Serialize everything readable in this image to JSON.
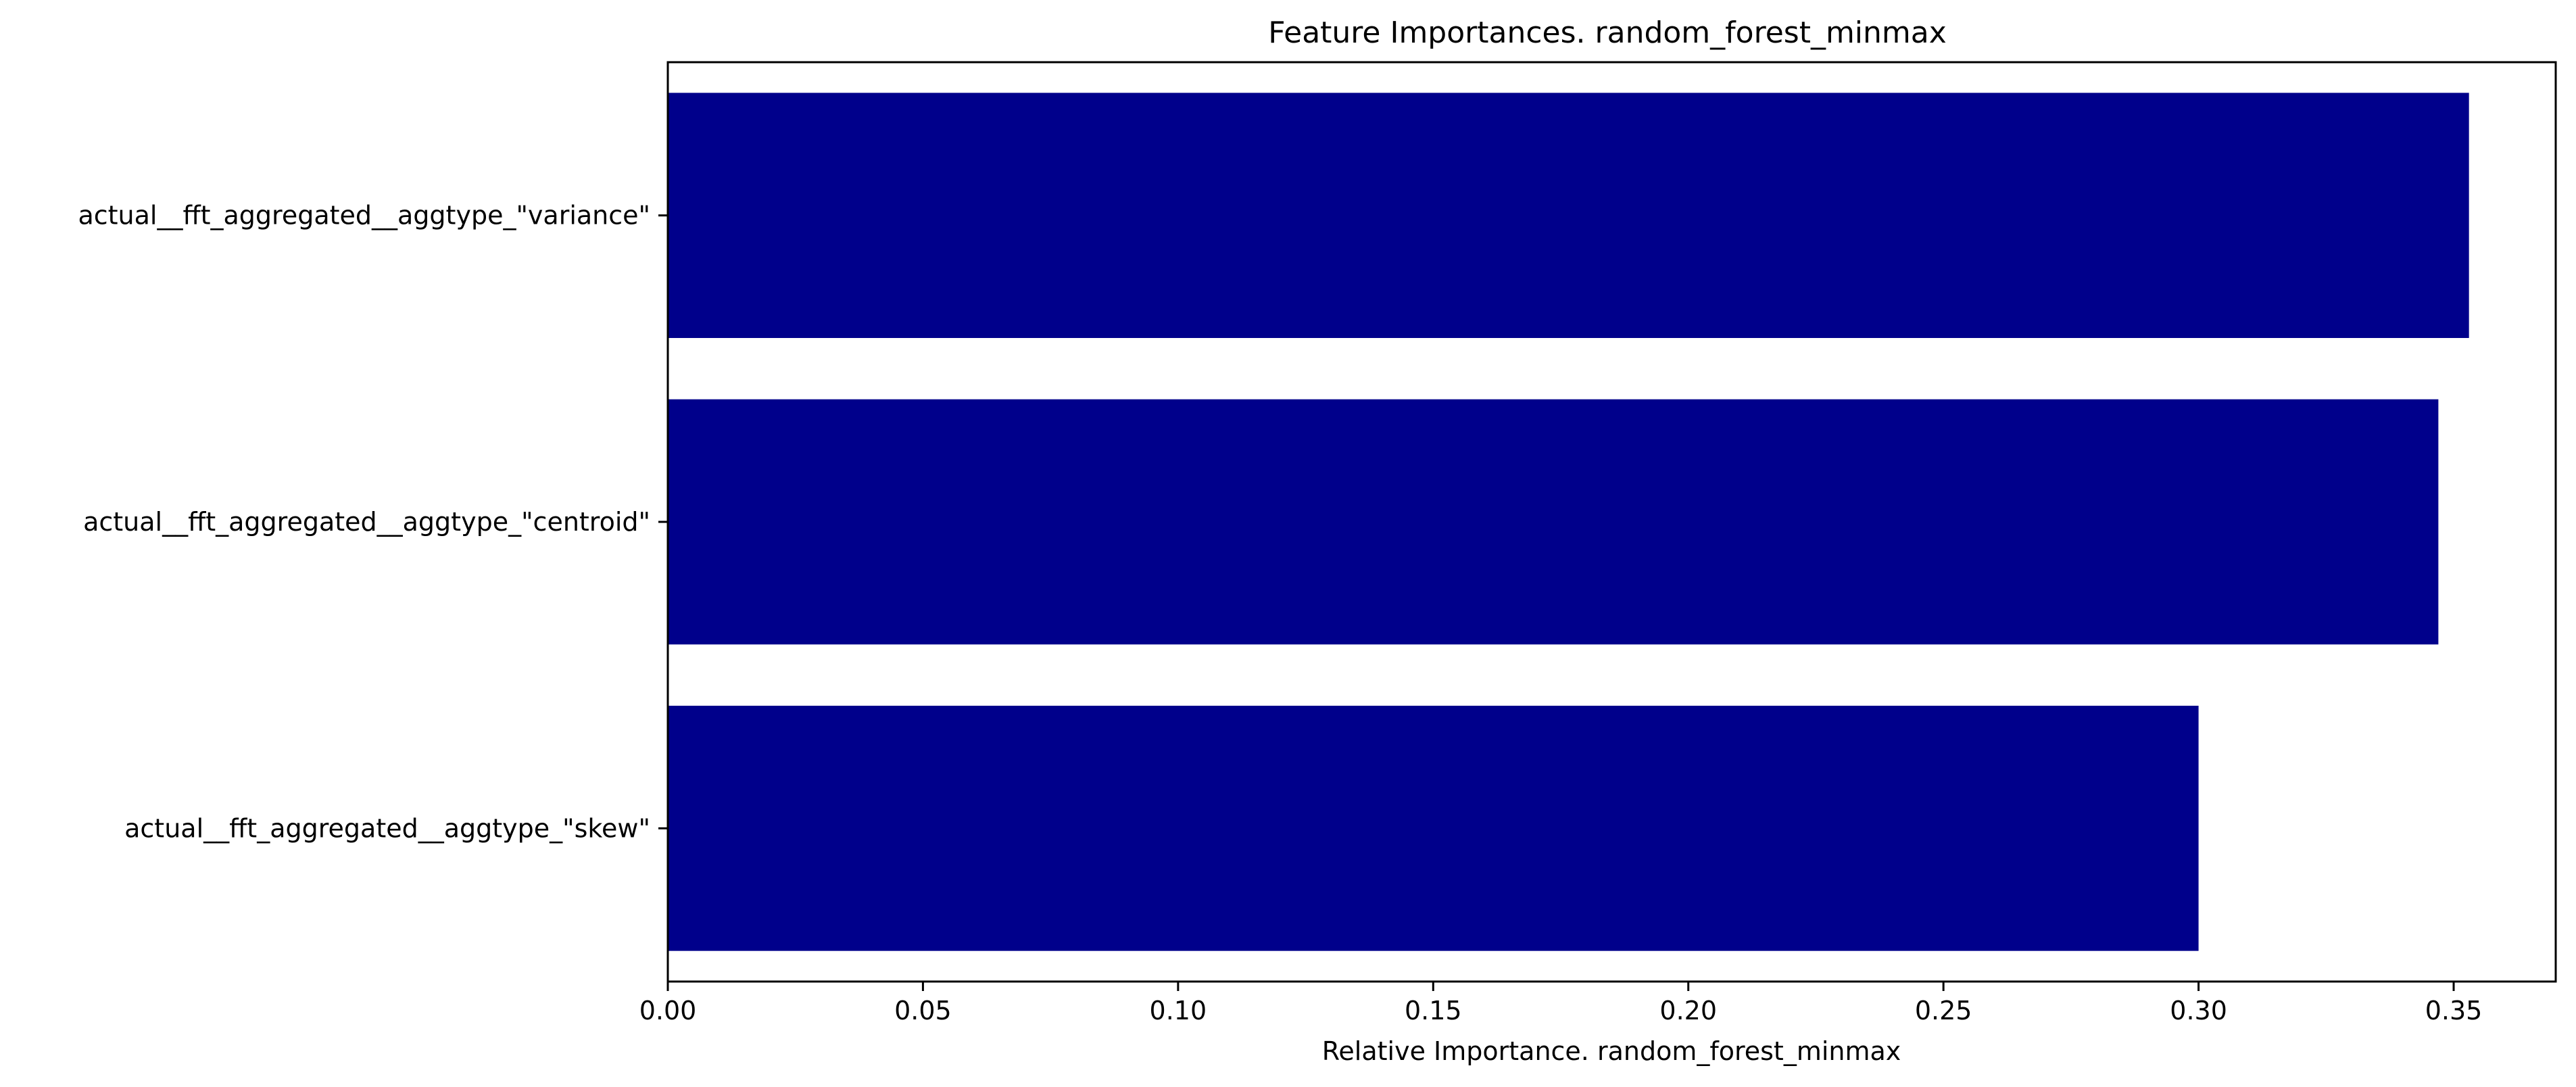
{
  "chart_data": {
    "type": "bar",
    "orientation": "horizontal",
    "title": "Feature Importances. random_forest_minmax",
    "xlabel": "Relative Importance. random_forest_minmax",
    "ylabel": "",
    "categories": [
      "actual__fft_aggregated__aggtype_\"variance\"",
      "actual__fft_aggregated__aggtype_\"centroid\"",
      "actual__fft_aggregated__aggtype_\"skew\""
    ],
    "values": [
      0.353,
      0.347,
      0.3
    ],
    "xlim": [
      0,
      0.37
    ],
    "xticks": [
      0.0,
      0.05,
      0.1,
      0.15,
      0.2,
      0.25,
      0.3,
      0.35
    ],
    "xtick_labels": [
      "0.00",
      "0.05",
      "0.10",
      "0.15",
      "0.20",
      "0.25",
      "0.30",
      "0.35"
    ],
    "bar_color": "#00008b",
    "grid": false,
    "legend": "none"
  }
}
